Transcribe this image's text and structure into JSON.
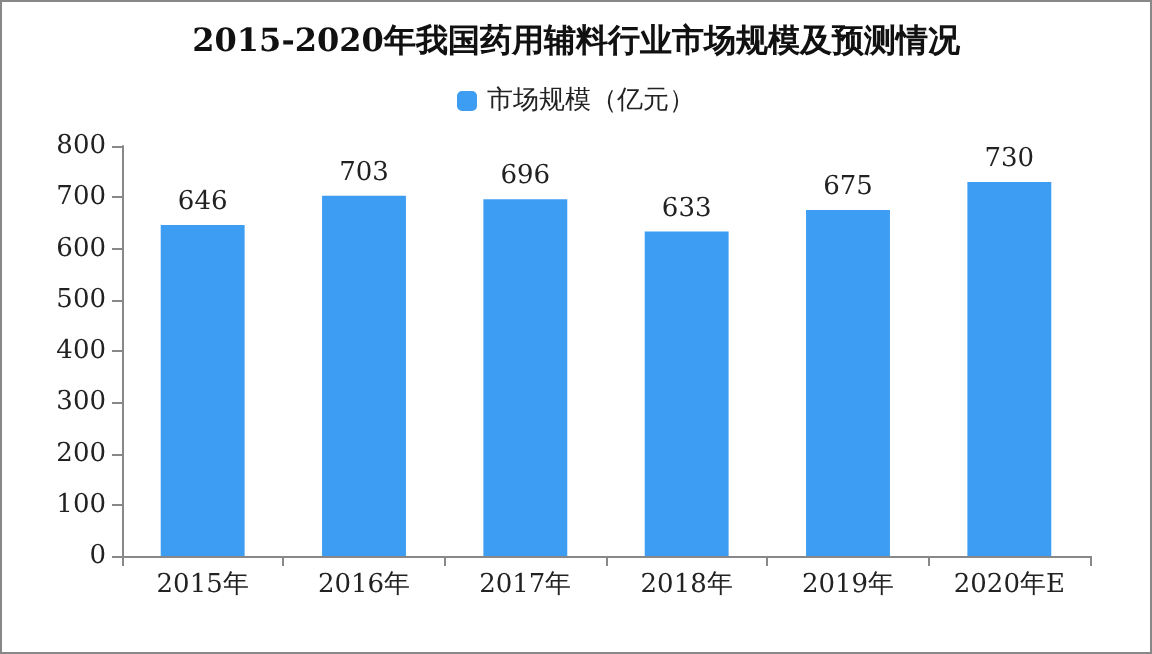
{
  "chart_data": {
    "type": "bar",
    "title": "2015-2020年我国药用辅料行业市场规模及预测情况",
    "categories": [
      "2015年",
      "2016年",
      "2017年",
      "2018年",
      "2019年",
      "2020年E"
    ],
    "series": [
      {
        "name": "市场规模（亿元）",
        "color": "#3d9df2",
        "values": [
          646,
          703,
          696,
          633,
          675,
          730
        ]
      }
    ],
    "ylim": [
      0,
      800
    ],
    "yticks": [
      0,
      100,
      200,
      300,
      400,
      500,
      600,
      700,
      800
    ],
    "data_labels": true,
    "legend": "top",
    "grid": false
  }
}
